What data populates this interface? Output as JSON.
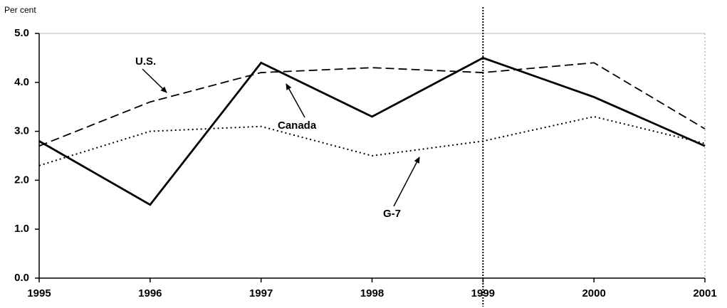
{
  "chart_data": {
    "type": "line",
    "y_axis_label": "Per cent",
    "categories": [
      "1995",
      "1996",
      "1997",
      "1998",
      "1999",
      "2000",
      "2001"
    ],
    "series": [
      {
        "name": "Canada",
        "color": "#000000",
        "style": "solid",
        "values": [
          2.8,
          1.5,
          4.4,
          3.3,
          4.5,
          3.7,
          2.7
        ]
      },
      {
        "name": "U.S.",
        "color": "#000000",
        "style": "dashed",
        "values": [
          2.7,
          3.6,
          4.2,
          4.3,
          4.2,
          4.4,
          3.05
        ]
      },
      {
        "name": "G-7",
        "color": "#000000",
        "style": "dotted",
        "values": [
          2.3,
          3.0,
          3.1,
          2.5,
          2.8,
          3.3,
          2.75
        ]
      }
    ],
    "ylim": [
      0,
      5
    ],
    "yticks": [
      {
        "value": 0,
        "label": "0.0"
      },
      {
        "value": 1,
        "label": "1.0"
      },
      {
        "value": 2,
        "label": "2.0"
      },
      {
        "value": 3,
        "label": "3.0"
      },
      {
        "value": 4,
        "label": "4.0"
      },
      {
        "value": 5,
        "label": "5.0"
      }
    ]
  }
}
